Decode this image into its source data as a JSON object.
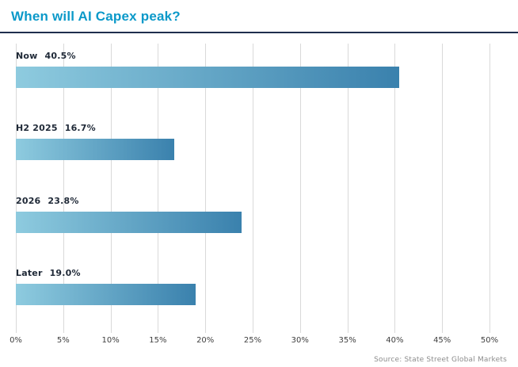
{
  "header": {
    "title": "When will AI Capex peak?"
  },
  "footer": {
    "source": "Source: State Street Global Markets"
  },
  "colors": {
    "title": "#0b99c9",
    "divider": "#1f2e4d",
    "gridline": "#d9d9d9",
    "label": "#1f2937",
    "tick": "#3f3f3f",
    "source": "#8c8c8c",
    "bar_start": "#8ecbdf",
    "bar_end": "#3a81ad"
  },
  "chart_data": {
    "type": "bar",
    "orientation": "horizontal",
    "title": "When will AI Capex peak?",
    "categories": [
      "Now",
      "H2 2025",
      "2026",
      "Later"
    ],
    "values": [
      40.5,
      16.7,
      23.8,
      19.0
    ],
    "value_labels": [
      "40.5%",
      "16.7%",
      "23.8%",
      "19.0%"
    ],
    "xlabel": "",
    "ylabel": "",
    "xlim": [
      0,
      50
    ],
    "x_tick_values": [
      0,
      5,
      10,
      15,
      20,
      25,
      30,
      35,
      40,
      45,
      50
    ],
    "x_ticks": [
      "0%",
      "5%",
      "10%",
      "15%",
      "20%",
      "25%",
      "30%",
      "35%",
      "40%",
      "45%",
      "50%"
    ],
    "grid": "vertical",
    "legend": "none",
    "source": "Source: State Street Global Markets"
  }
}
